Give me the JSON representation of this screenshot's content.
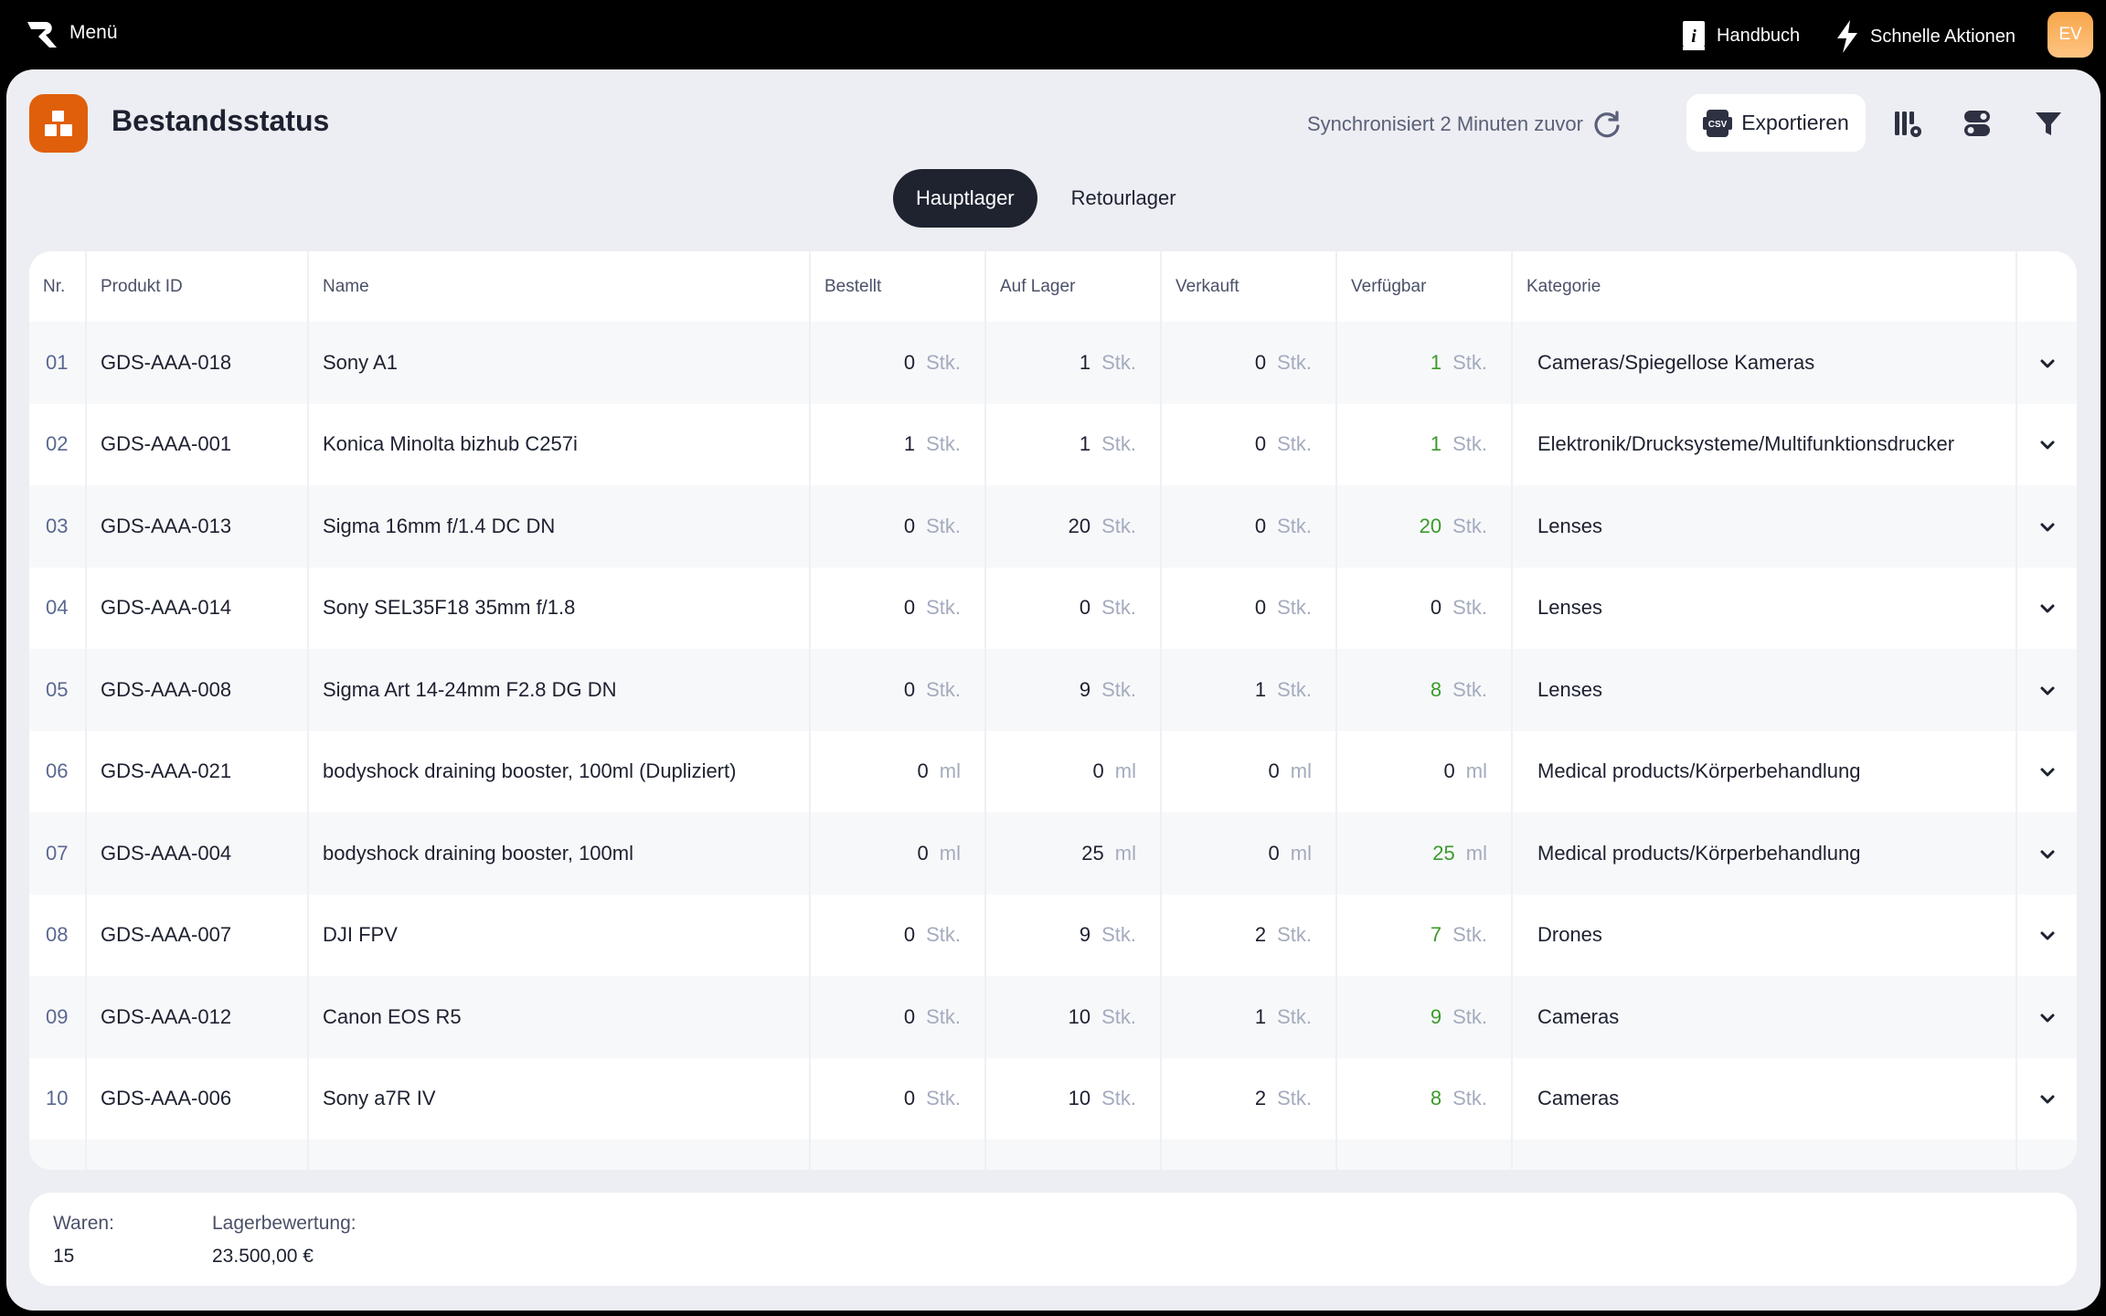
{
  "topbar": {
    "menu": "Menü",
    "handbook": "Handbuch",
    "quick_actions": "Schnelle Aktionen",
    "avatar": "EV"
  },
  "header": {
    "title": "Bestandsstatus",
    "sync": "Synchronisiert 2 Minuten zuvor",
    "export": "Exportieren",
    "export_badge": "CSV"
  },
  "tabs": [
    {
      "label": "Hauptlager",
      "active": true
    },
    {
      "label": "Retourlager",
      "active": false
    }
  ],
  "table": {
    "columns": [
      "Nr.",
      "Produkt ID",
      "Name",
      "Bestellt",
      "Auf Lager",
      "Verkauft",
      "Verfügbar",
      "Kategorie"
    ],
    "rows": [
      {
        "nr": "01",
        "id": "GDS-AAA-018",
        "name": "Sony A1",
        "bestellt": "0",
        "lager": "1",
        "verkauft": "0",
        "verfuegbar": "1",
        "unit": "Stk.",
        "kategorie": "Cameras/Spiegellose Kameras"
      },
      {
        "nr": "02",
        "id": "GDS-AAA-001",
        "name": "Konica Minolta bizhub C257i",
        "bestellt": "1",
        "lager": "1",
        "verkauft": "0",
        "verfuegbar": "1",
        "unit": "Stk.",
        "kategorie": "Elektronik/Drucksysteme/Multifunktionsdrucker"
      },
      {
        "nr": "03",
        "id": "GDS-AAA-013",
        "name": "Sigma 16mm f/1.4 DC DN",
        "bestellt": "0",
        "lager": "20",
        "verkauft": "0",
        "verfuegbar": "20",
        "unit": "Stk.",
        "kategorie": "Lenses"
      },
      {
        "nr": "04",
        "id": "GDS-AAA-014",
        "name": "Sony SEL35F18 35mm f/1.8",
        "bestellt": "0",
        "lager": "0",
        "verkauft": "0",
        "verfuegbar": "0",
        "unit": "Stk.",
        "kategorie": "Lenses"
      },
      {
        "nr": "05",
        "id": "GDS-AAA-008",
        "name": "Sigma Art 14-24mm F2.8 DG DN",
        "bestellt": "0",
        "lager": "9",
        "verkauft": "1",
        "verfuegbar": "8",
        "unit": "Stk.",
        "kategorie": "Lenses"
      },
      {
        "nr": "06",
        "id": "GDS-AAA-021",
        "name": "bodyshock draining booster, 100ml (Dupliziert)",
        "bestellt": "0",
        "lager": "0",
        "verkauft": "0",
        "verfuegbar": "0",
        "unit": "ml",
        "kategorie": "Medical products/Körperbehandlung"
      },
      {
        "nr": "07",
        "id": "GDS-AAA-004",
        "name": "bodyshock draining booster, 100ml",
        "bestellt": "0",
        "lager": "25",
        "verkauft": "0",
        "verfuegbar": "25",
        "unit": "ml",
        "kategorie": "Medical products/Körperbehandlung"
      },
      {
        "nr": "08",
        "id": "GDS-AAA-007",
        "name": "DJI FPV",
        "bestellt": "0",
        "lager": "9",
        "verkauft": "2",
        "verfuegbar": "7",
        "unit": "Stk.",
        "kategorie": "Drones"
      },
      {
        "nr": "09",
        "id": "GDS-AAA-012",
        "name": "Canon EOS R5",
        "bestellt": "0",
        "lager": "10",
        "verkauft": "1",
        "verfuegbar": "9",
        "unit": "Stk.",
        "kategorie": "Cameras"
      },
      {
        "nr": "10",
        "id": "GDS-AAA-006",
        "name": "Sony a7R IV",
        "bestellt": "0",
        "lager": "10",
        "verkauft": "2",
        "verfuegbar": "8",
        "unit": "Stk.",
        "kategorie": "Cameras"
      }
    ]
  },
  "footer": {
    "waren_label": "Waren:",
    "waren_value": "15",
    "bewertung_label": "Lagerbewertung:",
    "bewertung_value": "23.500,00 €"
  },
  "colors": {
    "accent": "#e05f0a",
    "available": "#3a9a2a",
    "tab_active": "#1f2330"
  }
}
